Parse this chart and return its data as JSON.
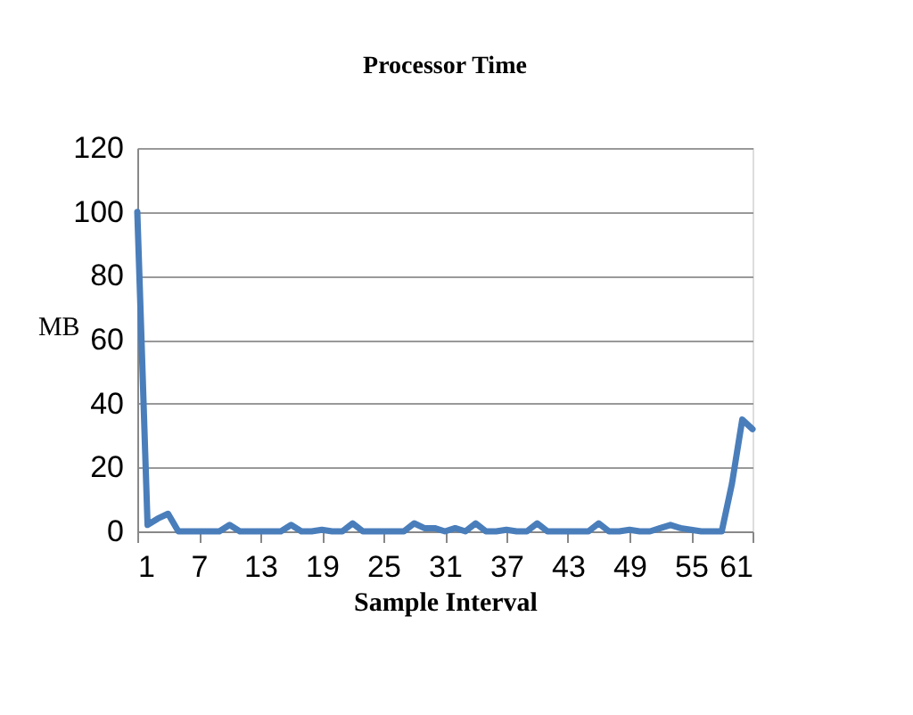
{
  "chart_data": {
    "type": "line",
    "title": "Processor Time",
    "xlabel": "Sample Interval",
    "ylabel": "MB",
    "categories": [
      "1",
      null,
      null,
      null,
      null,
      null,
      "7",
      null,
      null,
      null,
      null,
      null,
      "13",
      null,
      null,
      null,
      null,
      null,
      "19",
      null,
      null,
      null,
      null,
      null,
      "25",
      null,
      null,
      null,
      null,
      null,
      "31",
      null,
      null,
      null,
      null,
      null,
      "37",
      null,
      null,
      null,
      null,
      null,
      "43",
      null,
      null,
      null,
      null,
      null,
      "49",
      null,
      null,
      null,
      null,
      null,
      "55",
      null,
      null,
      null,
      null,
      null,
      "61"
    ],
    "series": [
      {
        "color": "#4a7ebb",
        "values": [
          100,
          2,
          4,
          5.5,
          0,
          0,
          0,
          0,
          0,
          2,
          0,
          0,
          0,
          0,
          0,
          2,
          0,
          0,
          0.5,
          0,
          0,
          2.5,
          0,
          0,
          0,
          0,
          0,
          2.5,
          1,
          1,
          0,
          1,
          0,
          2.5,
          0,
          0,
          0.5,
          0,
          0,
          2.5,
          0,
          0,
          0,
          0,
          0,
          2.5,
          0,
          0,
          0.5,
          0,
          0,
          1,
          2,
          1,
          0.5,
          0,
          0,
          0,
          15,
          35,
          32
        ]
      }
    ],
    "ylim": [
      0,
      120
    ],
    "yticks": [
      0,
      20,
      40,
      60,
      80,
      100,
      120
    ],
    "grid": "y",
    "marker": "none",
    "line_style": "solid"
  }
}
